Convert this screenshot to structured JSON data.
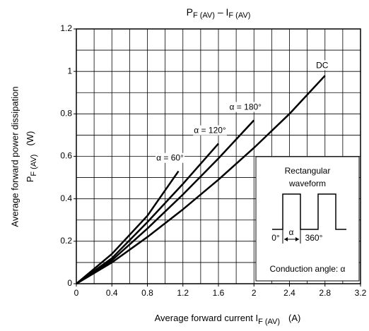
{
  "chart_data": {
    "type": "line",
    "title": [
      "P",
      "F (AV)",
      " – I",
      "F (AV)"
    ],
    "ylabel": [
      "Average forward power dissipation",
      "P",
      "F (AV)",
      "(W)"
    ],
    "xlabel": [
      "Average forward current  I",
      "F (AV)",
      "(A)"
    ],
    "xlim": [
      0,
      3.2
    ],
    "ylim": [
      0,
      1.2
    ],
    "xticks": [
      0,
      0.4,
      0.8,
      1.2,
      1.6,
      2.0,
      2.4,
      2.8,
      3.2
    ],
    "yticks": [
      0,
      0.2,
      0.4,
      0.6,
      0.8,
      1.0,
      1.2
    ],
    "xgrid": [
      0.2,
      0.4,
      0.6,
      0.8,
      1.0,
      1.2,
      1.4,
      1.6,
      1.8,
      2.0,
      2.2,
      2.4,
      2.6,
      2.8,
      3.0
    ],
    "ygrid": [
      0.1,
      0.2,
      0.3,
      0.4,
      0.5,
      0.6,
      0.7,
      0.8,
      0.9,
      1.0,
      1.1
    ],
    "grid": true,
    "color": "#000000",
    "series": [
      {
        "name": "DC",
        "x": [
          0,
          0.4,
          0.8,
          1.2,
          1.6,
          2.0,
          2.4,
          2.8
        ],
        "values": [
          0,
          0.1,
          0.22,
          0.35,
          0.49,
          0.64,
          0.8,
          0.98
        ]
      },
      {
        "name": "α = 180°",
        "x": [
          0,
          0.4,
          0.8,
          1.2,
          1.6,
          2.0
        ],
        "values": [
          0,
          0.11,
          0.26,
          0.42,
          0.59,
          0.77
        ]
      },
      {
        "name": "α = 120°",
        "x": [
          0,
          0.4,
          0.8,
          1.2,
          1.6
        ],
        "values": [
          0,
          0.12,
          0.29,
          0.47,
          0.66
        ]
      },
      {
        "name": "α = 60°",
        "x": [
          0,
          0.4,
          0.8,
          1.15
        ],
        "values": [
          0,
          0.14,
          0.32,
          0.53
        ]
      }
    ],
    "inset": {
      "title": [
        "Rectangular",
        "waveform"
      ],
      "start": "0°",
      "width": "α",
      "end": "360°",
      "caption": "Conduction angle: α"
    }
  }
}
